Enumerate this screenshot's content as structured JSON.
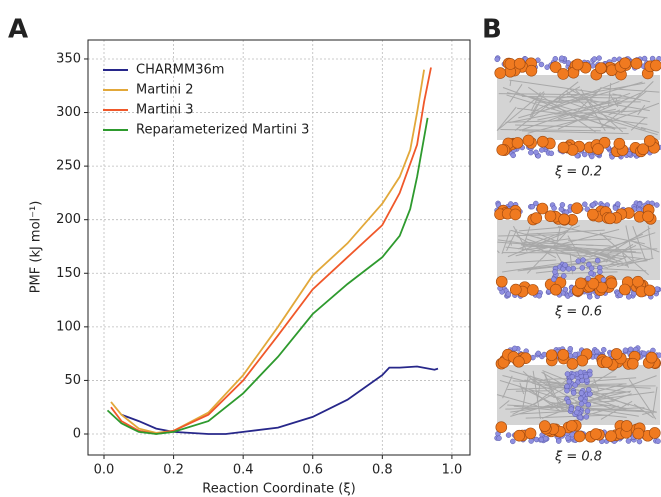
{
  "panel_labels": [
    "A",
    "B"
  ],
  "chart_data": {
    "type": "line",
    "xlabel": "Reaction Coordinate (ξ)",
    "ylabel": "PMF (kJ mol⁻¹)",
    "xlim": [
      -0.046,
      1.052
    ],
    "ylim": [
      -19.6,
      367.7
    ],
    "xticks": [
      {
        "value": 0,
        "label": "0.0"
      },
      0.2,
      0.4,
      0.6,
      0.8,
      {
        "value": 1,
        "label": "1.0"
      }
    ],
    "yticks": [
      0,
      50,
      100,
      150,
      200,
      250,
      300,
      350
    ],
    "grid": true,
    "legend": "upper left",
    "series": [
      {
        "name": "CHARMM36m",
        "color": "#27278a",
        "x": [
          0.05,
          0.1,
          0.15,
          0.2,
          0.3,
          0.35,
          0.4,
          0.5,
          0.6,
          0.7,
          0.8,
          0.82,
          0.85,
          0.9,
          0.95,
          0.96
        ],
        "values": [
          18,
          12,
          5,
          2,
          0,
          0,
          2,
          6,
          16,
          32,
          55,
          62,
          62,
          63,
          60,
          61
        ]
      },
      {
        "name": "Martini 2",
        "color": "#e2a83a",
        "x": [
          0.02,
          0.05,
          0.1,
          0.15,
          0.2,
          0.3,
          0.4,
          0.5,
          0.6,
          0.7,
          0.8,
          0.85,
          0.88,
          0.9,
          0.92
        ],
        "values": [
          30,
          18,
          5,
          1,
          3,
          20,
          55,
          100,
          148,
          178,
          215,
          240,
          265,
          300,
          340
        ]
      },
      {
        "name": "Martini 3",
        "color": "#f0582a",
        "x": [
          0.02,
          0.05,
          0.1,
          0.15,
          0.2,
          0.3,
          0.4,
          0.5,
          0.6,
          0.7,
          0.8,
          0.85,
          0.9,
          0.92,
          0.94
        ],
        "values": [
          25,
          12,
          3,
          0,
          3,
          18,
          50,
          92,
          135,
          165,
          195,
          225,
          270,
          310,
          342
        ]
      },
      {
        "name": "Reparameterized Martini 3",
        "color": "#2e9a2e",
        "x": [
          0.01,
          0.05,
          0.1,
          0.15,
          0.2,
          0.3,
          0.4,
          0.5,
          0.6,
          0.7,
          0.8,
          0.85,
          0.88,
          0.9,
          0.93
        ],
        "values": [
          22,
          10,
          2,
          0,
          2,
          12,
          38,
          72,
          112,
          140,
          165,
          185,
          210,
          240,
          295
        ]
      }
    ]
  },
  "snapshots": [
    {
      "label": "ξ = 0.2"
    },
    {
      "label": "ξ = 0.6"
    },
    {
      "label": "ξ = 0.8"
    }
  ]
}
